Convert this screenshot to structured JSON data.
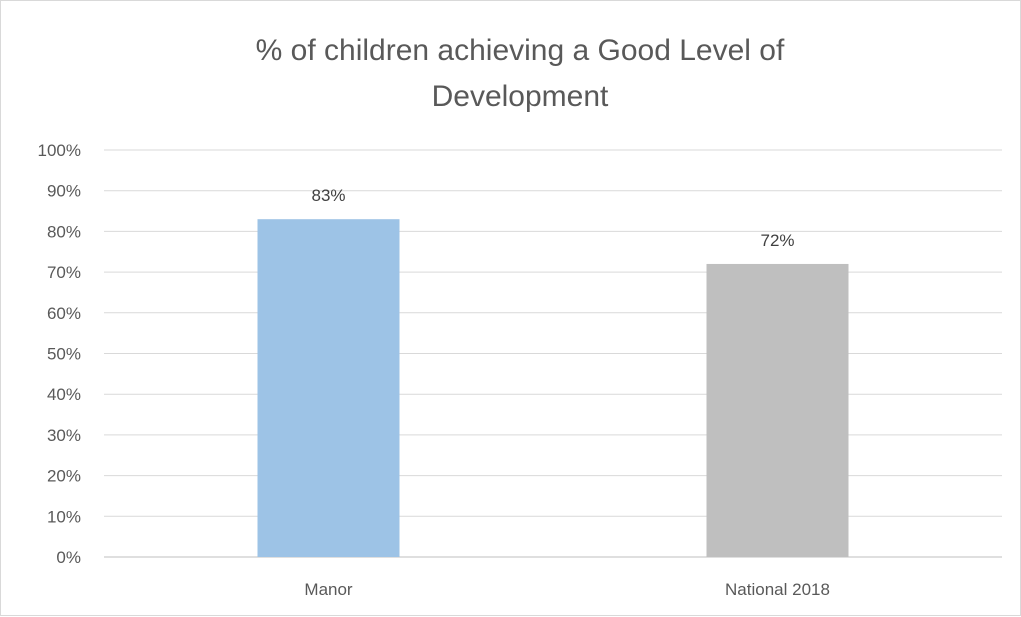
{
  "chart_data": {
    "type": "bar",
    "title_lines": [
      "% of children achieving a Good Level of",
      "Development"
    ],
    "categories": [
      "Manor",
      "National 2018"
    ],
    "values": [
      83,
      72
    ],
    "data_labels": [
      "83%",
      "72%"
    ],
    "colors": [
      "#9dc3e6",
      "#bfbfbf"
    ],
    "ylim": [
      0,
      100
    ],
    "y_ticks": [
      0,
      10,
      20,
      30,
      40,
      50,
      60,
      70,
      80,
      90,
      100
    ],
    "y_tick_labels": [
      "0%",
      "10%",
      "20%",
      "30%",
      "40%",
      "50%",
      "60%",
      "70%",
      "80%",
      "90%",
      "100%"
    ],
    "grid": true,
    "legend": "none"
  }
}
